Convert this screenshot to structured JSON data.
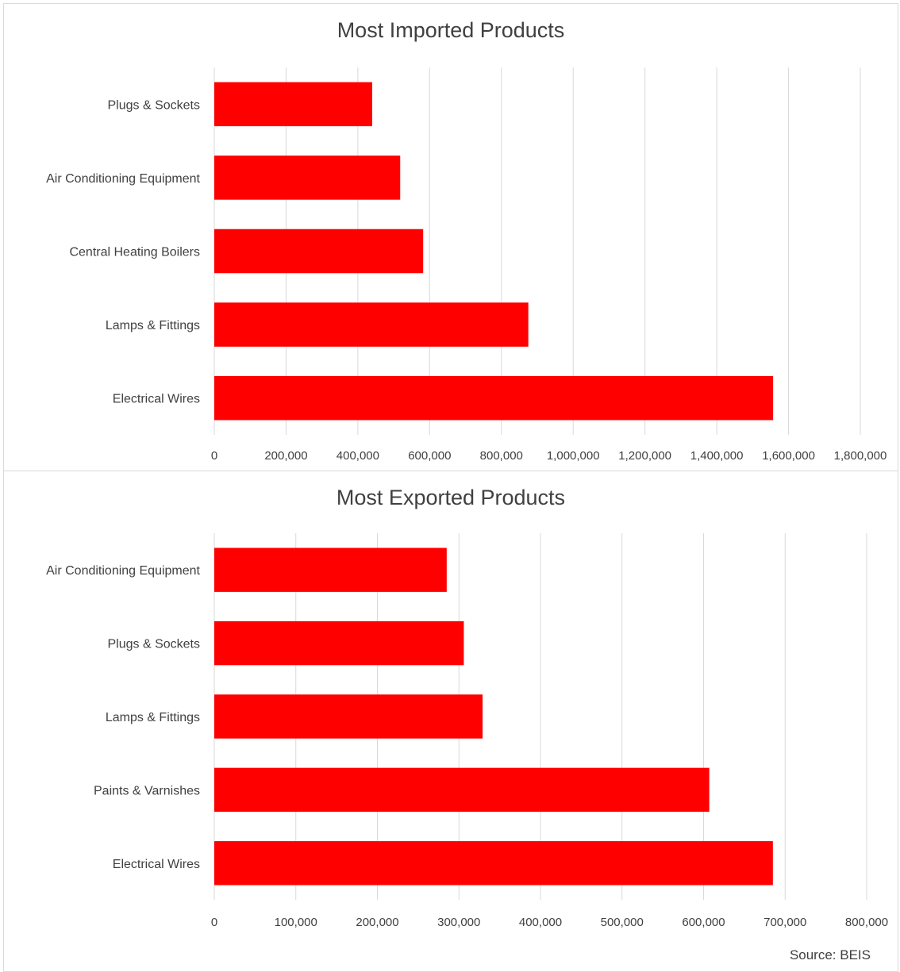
{
  "chart_data": [
    {
      "type": "bar",
      "orientation": "horizontal",
      "title": "Most Imported Products",
      "categories": [
        "Plugs & Sockets",
        "Air Conditioning Equipment",
        "Central Heating Boilers",
        "Lamps & Fittings",
        "Electrical Wires"
      ],
      "values": [
        440000,
        518000,
        582000,
        875000,
        1557000
      ],
      "xlim": [
        0,
        1800000
      ],
      "xticks": [
        0,
        200000,
        400000,
        600000,
        800000,
        1000000,
        1200000,
        1400000,
        1600000,
        1800000
      ],
      "xtick_labels": [
        "0",
        "200,000",
        "400,000",
        "600,000",
        "800,000",
        "1,000,000",
        "1,200,000",
        "1,400,000",
        "1,600,000",
        "1,800,000"
      ],
      "grid": true,
      "bar_color": "#ff0000"
    },
    {
      "type": "bar",
      "orientation": "horizontal",
      "title": "Most Exported Products",
      "categories": [
        "Air Conditioning Equipment",
        "Plugs & Sockets",
        "Lamps & Fittings",
        "Paints & Varnishes",
        "Electrical Wires"
      ],
      "values": [
        285000,
        306000,
        329000,
        607000,
        685000
      ],
      "xlim": [
        0,
        800000
      ],
      "xticks": [
        0,
        100000,
        200000,
        300000,
        400000,
        500000,
        600000,
        700000,
        800000
      ],
      "xtick_labels": [
        "0",
        "100,000",
        "200,000",
        "300,000",
        "400,000",
        "500,000",
        "600,000",
        "700,000",
        "800,000"
      ],
      "grid": true,
      "bar_color": "#ff0000"
    }
  ],
  "source": "Source: BEIS",
  "colors": {
    "bar": "#ff0000",
    "grid": "#d9d9d9",
    "text": "#404040"
  }
}
